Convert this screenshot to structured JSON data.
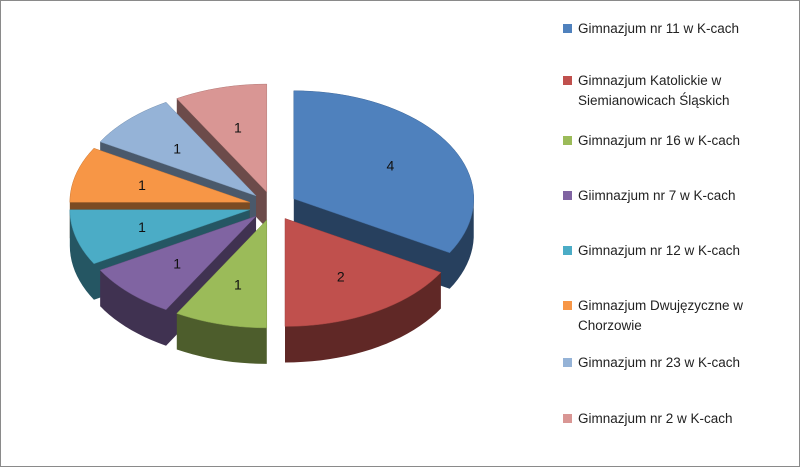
{
  "chart_data": {
    "type": "pie",
    "style": "3d-exploded",
    "legend_position": "right",
    "categories": [
      "Gimnazjum nr 11 w K-cach",
      "Gimnazjum Katolickie w Siemianowicach Śląskich",
      "Gimnazjum nr 16 w K-cach",
      "Giimnazjum nr 7 w K-cach",
      "Gimnazjum nr 12 w K-cach",
      "Gimnazjum Dwujęzyczne w Chorzowie",
      "Gimnazjum nr 23 w K-cach",
      "Gimnazjum nr 2 w K-cach"
    ],
    "values": [
      4,
      2,
      1,
      1,
      1,
      1,
      1,
      1
    ],
    "data_labels": [
      "4",
      "2",
      "1",
      "1",
      "1",
      "1",
      "1",
      "1"
    ],
    "colors": [
      "#4F81BD",
      "#C0504D",
      "#9BBB59",
      "#8064A2",
      "#4BACC6",
      "#F79646",
      "#95B3D7",
      "#D99694"
    ]
  }
}
